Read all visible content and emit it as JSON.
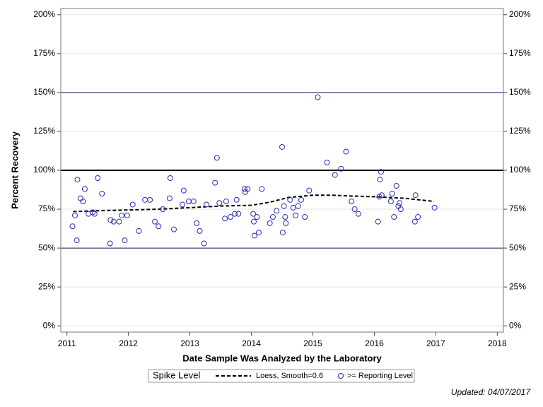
{
  "chart_data": {
    "type": "scatter",
    "x_label": "Date Sample Was Analyzed by the Laboratory",
    "y_label": "Percent Recovery",
    "xlim": [
      2010.9,
      2018.1
    ],
    "xticks": [
      2011,
      2012,
      2013,
      2014,
      2015,
      2016,
      2017,
      2018
    ],
    "ylim": [
      -4,
      204
    ],
    "yticks": [
      {
        "value": 0,
        "label": "0%"
      },
      {
        "value": 25,
        "label": "25%"
      },
      {
        "value": 50,
        "label": "50%"
      },
      {
        "value": 75,
        "label": "75%"
      },
      {
        "value": 100,
        "label": "100%"
      },
      {
        "value": 125,
        "label": "125%"
      },
      {
        "value": 150,
        "label": "150%"
      },
      {
        "value": 175,
        "label": "175%"
      },
      {
        "value": 200,
        "label": "200%"
      }
    ],
    "y2lim": [
      -4,
      204
    ],
    "y2ticks": [
      {
        "value": 0,
        "label": "0%"
      },
      {
        "value": 25,
        "label": "25%"
      },
      {
        "value": 50,
        "label": "50%"
      },
      {
        "value": 75,
        "label": "75%"
      },
      {
        "value": 100,
        "label": "100%"
      },
      {
        "value": 125,
        "label": "125%"
      },
      {
        "value": 150,
        "label": "150%"
      },
      {
        "value": 175,
        "label": "175%"
      },
      {
        "value": 200,
        "label": "200%"
      }
    ],
    "grid": true,
    "reference_lines": [
      {
        "value": 50,
        "color": "#1a1a66",
        "width": 1
      },
      {
        "value": 100,
        "color": "#000000",
        "width": 2
      },
      {
        "value": 150,
        "color": "#1a1a66",
        "width": 1
      }
    ],
    "legend_title": "Spike Level",
    "series": [
      {
        "name": "Loess, Smooth=0.6",
        "type": "line",
        "color": "#000000",
        "dashed": true,
        "x": [
          2011.1,
          2011.5,
          2012,
          2012.5,
          2013,
          2013.5,
          2014,
          2014.3,
          2014.6,
          2015,
          2015.3,
          2015.6,
          2016,
          2016.5,
          2016.97
        ],
        "values": [
          73.5,
          74,
          74.5,
          75,
          76,
          77,
          77.5,
          79.5,
          82.5,
          84,
          84,
          83.5,
          83,
          82,
          80
        ]
      },
      {
        "name": ">= Reporting Level",
        "type": "scatter",
        "color": "#2a2ab8",
        "x": [
          2011.09,
          2011.13,
          2011.16,
          2011.17,
          2011.22,
          2011.26,
          2011.29,
          2011.35,
          2011.42,
          2011.45,
          2011.5,
          2011.57,
          2011.7,
          2011.71,
          2011.76,
          2011.85,
          2011.89,
          2011.94,
          2011.98,
          2012.07,
          2012.17,
          2012.27,
          2012.35,
          2012.43,
          2012.49,
          2012.56,
          2012.67,
          2012.68,
          2012.74,
          2012.88,
          2012.9,
          2012.98,
          2013.06,
          2013.11,
          2013.16,
          2013.23,
          2013.27,
          2013.41,
          2013.44,
          2013.48,
          2013.57,
          2013.59,
          2013.66,
          2013.73,
          2013.76,
          2013.79,
          2013.89,
          2013.9,
          2013.94,
          2014.03,
          2014.04,
          2014.05,
          2014.09,
          2014.12,
          2014.17,
          2014.3,
          2014.35,
          2014.41,
          2014.5,
          2014.51,
          2014.53,
          2014.55,
          2014.56,
          2014.63,
          2014.68,
          2014.72,
          2014.76,
          2014.81,
          2014.87,
          2014.94,
          2015.08,
          2015.23,
          2015.36,
          2015.46,
          2015.54,
          2015.63,
          2015.68,
          2015.74,
          2016.06,
          2016.08,
          2016.09,
          2016.11,
          2016.12,
          2016.27,
          2016.29,
          2016.32,
          2016.36,
          2016.39,
          2016.41,
          2016.43,
          2016.66,
          2016.67,
          2016.71,
          2016.98
        ],
        "values": [
          64,
          71,
          55,
          94,
          82,
          80,
          88,
          72,
          73,
          72,
          95,
          85,
          53,
          68,
          67,
          67,
          71,
          55,
          71,
          78,
          61,
          81,
          81,
          67,
          64,
          75,
          82,
          95,
          62,
          78,
          87,
          80,
          80,
          66,
          61,
          53,
          78,
          92,
          108,
          79,
          69,
          80,
          70,
          72,
          81,
          72,
          88,
          86,
          88,
          72,
          67,
          58,
          70,
          60,
          88,
          66,
          70,
          74,
          115,
          60,
          77,
          70,
          66,
          81,
          76,
          71,
          77,
          81,
          70,
          87,
          147,
          105,
          97,
          101,
          112,
          80,
          75,
          72,
          67,
          83,
          94,
          99,
          84,
          80,
          85,
          70,
          90,
          77,
          79,
          75,
          67,
          84,
          70,
          76
        ]
      }
    ],
    "footnote": "Updated: 04/07/2017"
  }
}
